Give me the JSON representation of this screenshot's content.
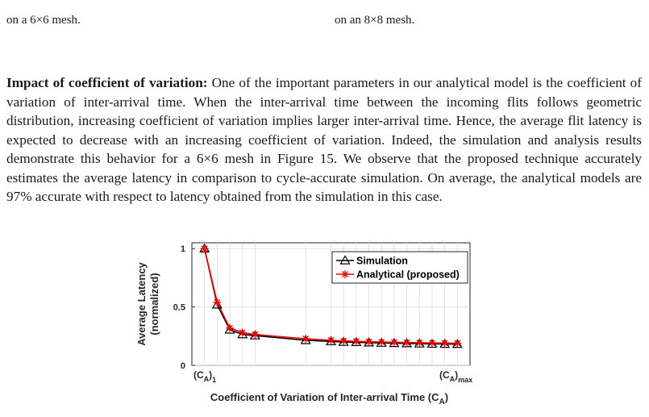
{
  "top_captions": {
    "left": "on a 6×6 mesh.",
    "right": "on an 8×8 mesh."
  },
  "paragraph": {
    "heading": "Impact of coefficient of variation:",
    "body": " One of the important parameters in our analytical model is the coefficient of variation of inter-arrival time. When the inter-arrival time between the incoming flits follows geometric distribution, increasing coefficient of variation implies larger inter-arrival time. Hence, the average flit latency is expected to decrease with an increasing coefficient of variation. Indeed, the simulation and analysis results demonstrate this behavior for a 6×6 mesh in Figure 15. We observe that the proposed technique accurately estimates the average latency in comparison to cycle-accurate simulation. On average, the analytical models are 97% accurate with respect to latency obtained from the simulation in this case."
  },
  "chart_data": {
    "type": "line",
    "xlabel": "Coefficient of Variation of Inter-arrival Time (C",
    "xlabel_sub": "A",
    "xlabel_close": ")",
    "ylabel_line1": "Average Latency",
    "ylabel_line2": "(normalized)",
    "x_tick_first": {
      "main": "(C",
      "sub": "A",
      "close": ")",
      "subscript": "1"
    },
    "x_tick_last": {
      "main": "(C",
      "sub": "A",
      "close": ")",
      "subscript": "max"
    },
    "yticks": [
      "0",
      "0.5",
      "1"
    ],
    "ylim": [
      0,
      1.05
    ],
    "x_index": [
      1,
      2,
      3,
      4,
      5,
      9,
      11,
      12,
      13,
      14,
      15,
      16,
      17,
      18,
      19,
      20,
      21
    ],
    "x_range": [
      0,
      22
    ],
    "grid": true,
    "legend_position": "top-right",
    "series": [
      {
        "name": "Simulation",
        "color": "#000000",
        "marker": "triangle",
        "values": [
          1.0,
          0.52,
          0.305,
          0.265,
          0.255,
          0.215,
          0.205,
          0.2,
          0.198,
          0.195,
          0.192,
          0.19,
          0.188,
          0.186,
          0.184,
          0.183,
          0.182
        ]
      },
      {
        "name": "Analytical (proposed)",
        "color": "#ff0000",
        "marker": "asterisk",
        "values": [
          1.0,
          0.54,
          0.32,
          0.28,
          0.265,
          0.228,
          0.215,
          0.21,
          0.206,
          0.203,
          0.2,
          0.198,
          0.196,
          0.194,
          0.192,
          0.191,
          0.19
        ]
      }
    ]
  }
}
